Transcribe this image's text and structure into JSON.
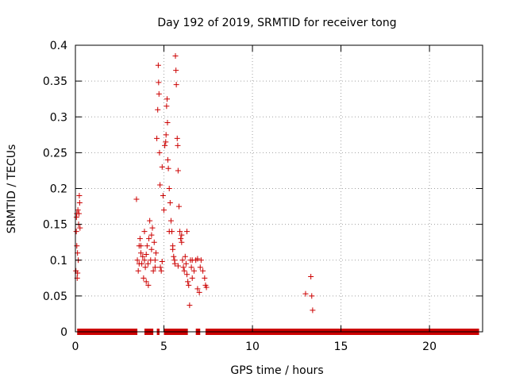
{
  "chart_data": {
    "type": "scatter",
    "title": "Day 192 of 2019, SRMTID for receiver tong",
    "xlabel": "GPS time / hours",
    "ylabel": "SRMTID / TECUs",
    "xlim": [
      0,
      23
    ],
    "ylim": [
      0,
      0.4
    ],
    "grid": true,
    "x_ticks": [
      0,
      5,
      10,
      15,
      20
    ],
    "x_tick_labels": [
      "0",
      "5",
      "10",
      "15",
      "20"
    ],
    "y_ticks": [
      0,
      0.05,
      0.1,
      0.15,
      0.2,
      0.25,
      0.3,
      0.35,
      0.4
    ],
    "y_tick_labels": [
      "0",
      "0.05",
      "0.1",
      "0.15",
      "0.2",
      "0.25",
      "0.3",
      "0.35",
      "0.4"
    ],
    "marker": "+",
    "marker_color": "#cc0000",
    "series": [
      {
        "name": "SRMTID",
        "points": [
          [
            0.03,
            0.085
          ],
          [
            0.05,
            0.14
          ],
          [
            0.06,
            0.16
          ],
          [
            0.08,
            0.12
          ],
          [
            0.1,
            0.075
          ],
          [
            0.12,
            0.11
          ],
          [
            0.14,
            0.17
          ],
          [
            0.16,
            0.1
          ],
          [
            0.18,
            0.15
          ],
          [
            0.2,
            0.165
          ],
          [
            0.22,
            0.19
          ],
          [
            0.24,
            0.18
          ],
          [
            0.26,
            0.145
          ],
          [
            0.12,
            0.082
          ],
          [
            0.08,
            0.165
          ],
          [
            3.45,
            0.185
          ],
          [
            3.5,
            0.1
          ],
          [
            3.55,
            0.085
          ],
          [
            3.6,
            0.12
          ],
          [
            3.65,
            0.13
          ],
          [
            3.7,
            0.11
          ],
          [
            3.75,
            0.095
          ],
          [
            3.8,
            0.105
          ],
          [
            3.85,
            0.075
          ],
          [
            3.9,
            0.14
          ],
          [
            3.95,
            0.09
          ],
          [
            4.0,
            0.07
          ],
          [
            4.05,
            0.12
          ],
          [
            4.1,
            0.095
          ],
          [
            4.12,
            0.065
          ],
          [
            4.15,
            0.13
          ],
          [
            4.2,
            0.155
          ],
          [
            4.25,
            0.1
          ],
          [
            4.3,
            0.115
          ],
          [
            4.35,
            0.145
          ],
          [
            4.4,
            0.085
          ],
          [
            4.45,
            0.125
          ],
          [
            4.5,
            0.1
          ],
          [
            4.55,
            0.11
          ],
          [
            4.6,
            0.27
          ],
          [
            4.65,
            0.31
          ],
          [
            4.68,
            0.372
          ],
          [
            4.7,
            0.348
          ],
          [
            4.72,
            0.332
          ],
          [
            4.75,
            0.25
          ],
          [
            4.78,
            0.205
          ],
          [
            4.8,
            0.09
          ],
          [
            4.85,
            0.085
          ],
          [
            4.9,
            0.23
          ],
          [
            4.95,
            0.19
          ],
          [
            5.0,
            0.17
          ],
          [
            5.05,
            0.26
          ],
          [
            5.1,
            0.265
          ],
          [
            5.12,
            0.275
          ],
          [
            5.15,
            0.315
          ],
          [
            5.18,
            0.325
          ],
          [
            5.2,
            0.292
          ],
          [
            5.22,
            0.24
          ],
          [
            5.25,
            0.228
          ],
          [
            5.3,
            0.2
          ],
          [
            5.35,
            0.18
          ],
          [
            5.4,
            0.155
          ],
          [
            5.45,
            0.14
          ],
          [
            5.5,
            0.12
          ],
          [
            5.55,
            0.105
          ],
          [
            5.6,
            0.1
          ],
          [
            5.62,
            0.095
          ],
          [
            5.65,
            0.385
          ],
          [
            5.68,
            0.365
          ],
          [
            5.7,
            0.345
          ],
          [
            5.75,
            0.27
          ],
          [
            5.78,
            0.26
          ],
          [
            5.8,
            0.225
          ],
          [
            5.85,
            0.175
          ],
          [
            5.9,
            0.14
          ],
          [
            5.95,
            0.13
          ],
          [
            6.0,
            0.125
          ],
          [
            6.05,
            0.1
          ],
          [
            6.1,
            0.09
          ],
          [
            6.15,
            0.085
          ],
          [
            6.2,
            0.105
          ],
          [
            6.25,
            0.095
          ],
          [
            6.3,
            0.08
          ],
          [
            6.35,
            0.07
          ],
          [
            6.4,
            0.065
          ],
          [
            6.45,
            0.037
          ],
          [
            6.5,
            0.1
          ],
          [
            6.55,
            0.09
          ],
          [
            6.6,
            0.075
          ],
          [
            6.7,
            0.085
          ],
          [
            6.8,
            0.1
          ],
          [
            6.9,
            0.06
          ],
          [
            7.0,
            0.055
          ],
          [
            7.05,
            0.09
          ],
          [
            7.1,
            0.1
          ],
          [
            7.2,
            0.085
          ],
          [
            7.3,
            0.075
          ],
          [
            7.35,
            0.065
          ],
          [
            7.4,
            0.062
          ],
          [
            3.6,
            0.095
          ],
          [
            3.7,
            0.12
          ],
          [
            3.9,
            0.1
          ],
          [
            4.0,
            0.108
          ],
          [
            4.3,
            0.135
          ],
          [
            4.5,
            0.09
          ],
          [
            4.9,
            0.098
          ],
          [
            5.3,
            0.14
          ],
          [
            5.5,
            0.115
          ],
          [
            5.8,
            0.092
          ],
          [
            6.0,
            0.135
          ],
          [
            6.3,
            0.14
          ],
          [
            6.6,
            0.1
          ],
          [
            6.9,
            0.102
          ],
          [
            13.0,
            0.053
          ],
          [
            13.3,
            0.077
          ],
          [
            13.35,
            0.05
          ],
          [
            13.4,
            0.03
          ]
        ],
        "zero_segments": [
          [
            0.1,
            3.5
          ],
          [
            3.9,
            4.4
          ],
          [
            4.6,
            4.75
          ],
          [
            5.0,
            6.35
          ],
          [
            6.8,
            7.05
          ],
          [
            7.35,
            22.8
          ]
        ]
      }
    ]
  }
}
